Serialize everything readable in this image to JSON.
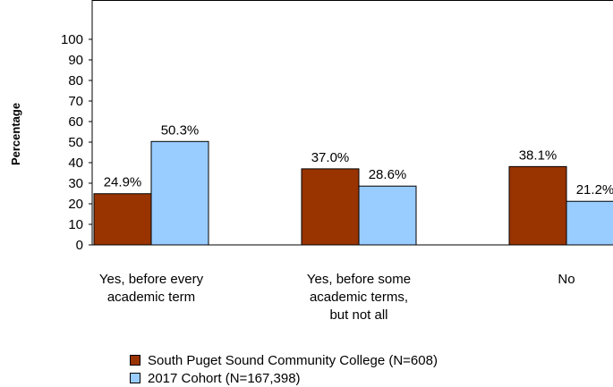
{
  "chart_data": {
    "type": "bar",
    "title": "",
    "xlabel": "",
    "ylabel": "Percentage",
    "ylim": [
      0,
      100
    ],
    "yticks": [
      0,
      10,
      20,
      30,
      40,
      50,
      60,
      70,
      80,
      90,
      100
    ],
    "categories": [
      [
        "Yes, before every",
        "academic term"
      ],
      [
        "Yes, before some",
        "academic terms,",
        "but not all"
      ],
      [
        "No"
      ]
    ],
    "series": [
      {
        "name": "South Puget Sound Community College (N=608)",
        "color": "#993300",
        "values": [
          24.9,
          37.0,
          38.1
        ],
        "labels": [
          "24.9%",
          "37.0%",
          "38.1%"
        ]
      },
      {
        "name": "2017 Cohort (N=167,398)",
        "color": "#99ccff",
        "values": [
          50.3,
          28.6,
          21.2
        ],
        "labels": [
          "50.3%",
          "28.6%",
          "21.2%"
        ]
      }
    ],
    "grid": false,
    "legend_position": "bottom"
  }
}
